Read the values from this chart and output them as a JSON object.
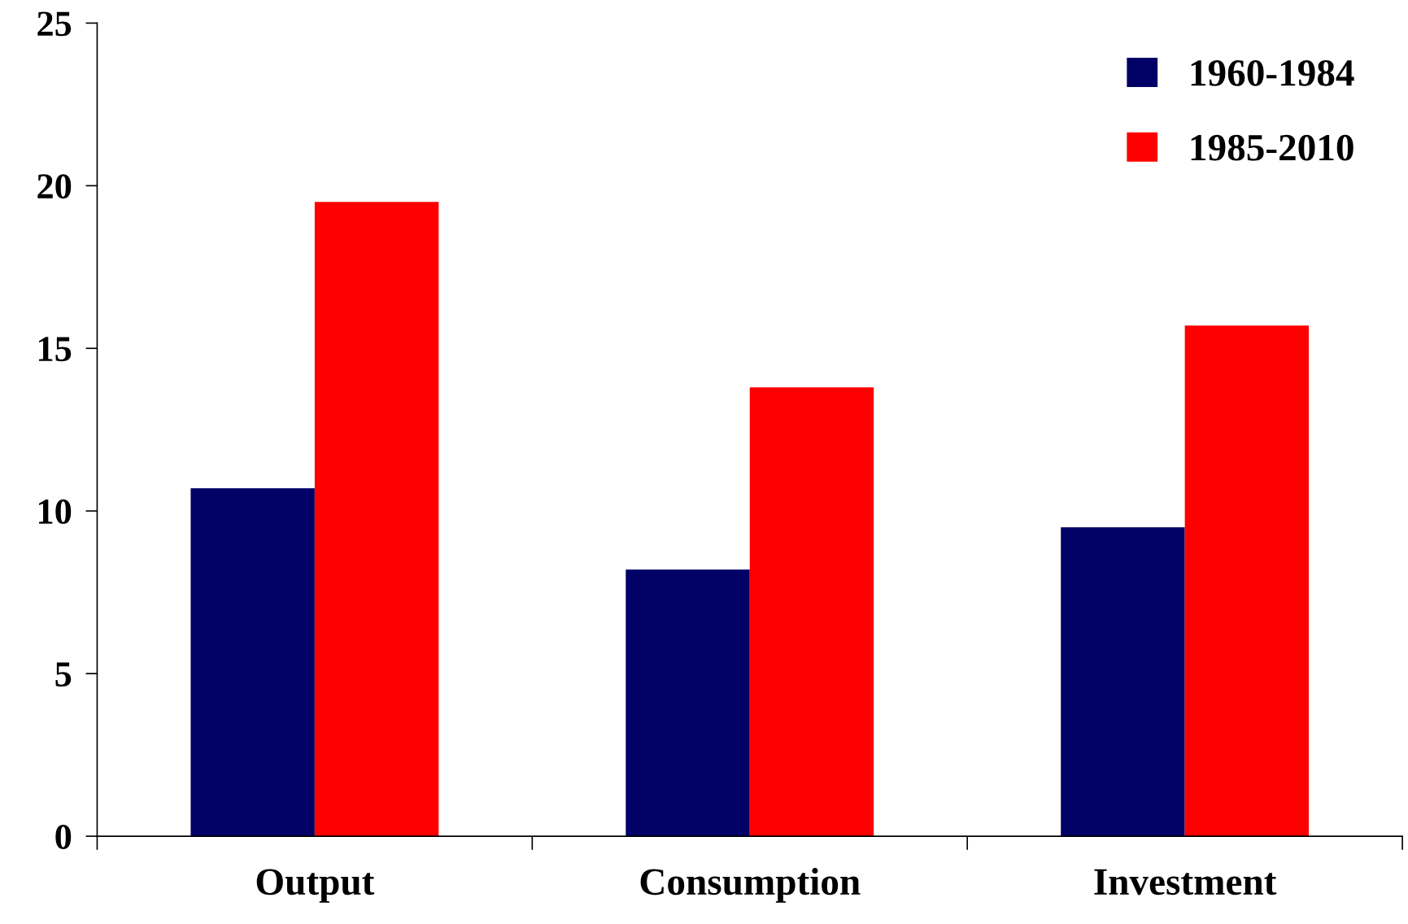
{
  "chart_data": {
    "type": "bar",
    "categories": [
      "Output",
      "Consumption",
      "Investment"
    ],
    "series": [
      {
        "name": "1960-1984",
        "color": "#000066",
        "values": [
          10.7,
          8.2,
          9.5
        ]
      },
      {
        "name": "1985-2010",
        "color": "#ff0000",
        "values": [
          19.5,
          13.8,
          15.7
        ]
      }
    ],
    "ylim": [
      0,
      25
    ],
    "yticks": [
      0,
      5,
      10,
      15,
      20,
      25
    ],
    "grid": false,
    "legend": "top right"
  }
}
